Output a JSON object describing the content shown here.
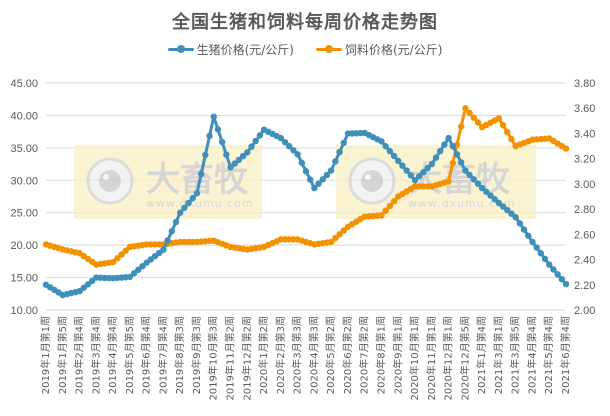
{
  "chart_data": {
    "type": "line",
    "title": "全国生猪和饲料每周价格走势图",
    "legend_position": "top",
    "grid": true,
    "y_left": {
      "label": "",
      "min": 10,
      "max": 45,
      "step": 5,
      "ticks": [
        "10.00",
        "15.00",
        "20.00",
        "25.00",
        "30.00",
        "35.00",
        "40.00",
        "45.00"
      ]
    },
    "y_right": {
      "label": "",
      "min": 2.0,
      "max": 3.8,
      "step": 0.2,
      "ticks": [
        "2.00",
        "2.20",
        "2.40",
        "2.60",
        "2.80",
        "3.00",
        "3.20",
        "3.40",
        "3.60",
        "3.80"
      ]
    },
    "categories": [
      "2019年1月第1周",
      "2019年1月第5周",
      "2019年2月第4周",
      "2019年3月第4周",
      "2019年4月第4周",
      "2019年5月第5周",
      "2019年6月第4周",
      "2019年7月第4周",
      "2019年8月第3周",
      "2019年9月第3周",
      "2019年10月第3周",
      "2019年11月第2周",
      "2019年12月第2周",
      "2020年1月第2周",
      "2020年2月第3周",
      "2020年3月第3周",
      "2020年4月第3周",
      "2020年5月第2周",
      "2020年6月第2周",
      "2020年7月第2周",
      "2020年8月第1周",
      "2020年9月第1周",
      "2020年10月第1周",
      "2020年11月第1周",
      "2020年12月第1周",
      "2020年12月第5周",
      "2021年1月第4周",
      "2021年3月第1周",
      "2021年3月第5周",
      "2021年4月第4周",
      "2021年5月第4周",
      "2021年6月第4周"
    ],
    "series": [
      {
        "name": "生猪价格(元/公斤)",
        "axis": "left",
        "color": "#3f8fba",
        "values": [
          13.9,
          12.3,
          12.9,
          15.0,
          14.9,
          15.1,
          17.3,
          19.3,
          25.0,
          28.0,
          39.8,
          32.0,
          34.3,
          37.8,
          36.5,
          34.0,
          28.8,
          31.5,
          37.2,
          37.3,
          36.0,
          33.0,
          30.0,
          32.5,
          36.5,
          31.5,
          28.8,
          26.5,
          24.3,
          20.5,
          17.0,
          14.0
        ]
      },
      {
        "name": "饲料价格(元/公斤)",
        "axis": "right",
        "color": "#f39200",
        "values": [
          2.52,
          2.48,
          2.45,
          2.36,
          2.38,
          2.5,
          2.52,
          2.52,
          2.54,
          2.54,
          2.55,
          2.5,
          2.48,
          2.5,
          2.56,
          2.56,
          2.52,
          2.54,
          2.66,
          2.74,
          2.75,
          2.9,
          2.98,
          2.98,
          3.02,
          3.6,
          3.45,
          3.52,
          3.3,
          3.35,
          3.36,
          3.28
        ]
      }
    ]
  },
  "watermarks": [
    {
      "brand": "大畜牧",
      "url": "www.dxumu.com"
    },
    {
      "brand": "大畜牧",
      "url": "www.dxumu.com"
    }
  ]
}
